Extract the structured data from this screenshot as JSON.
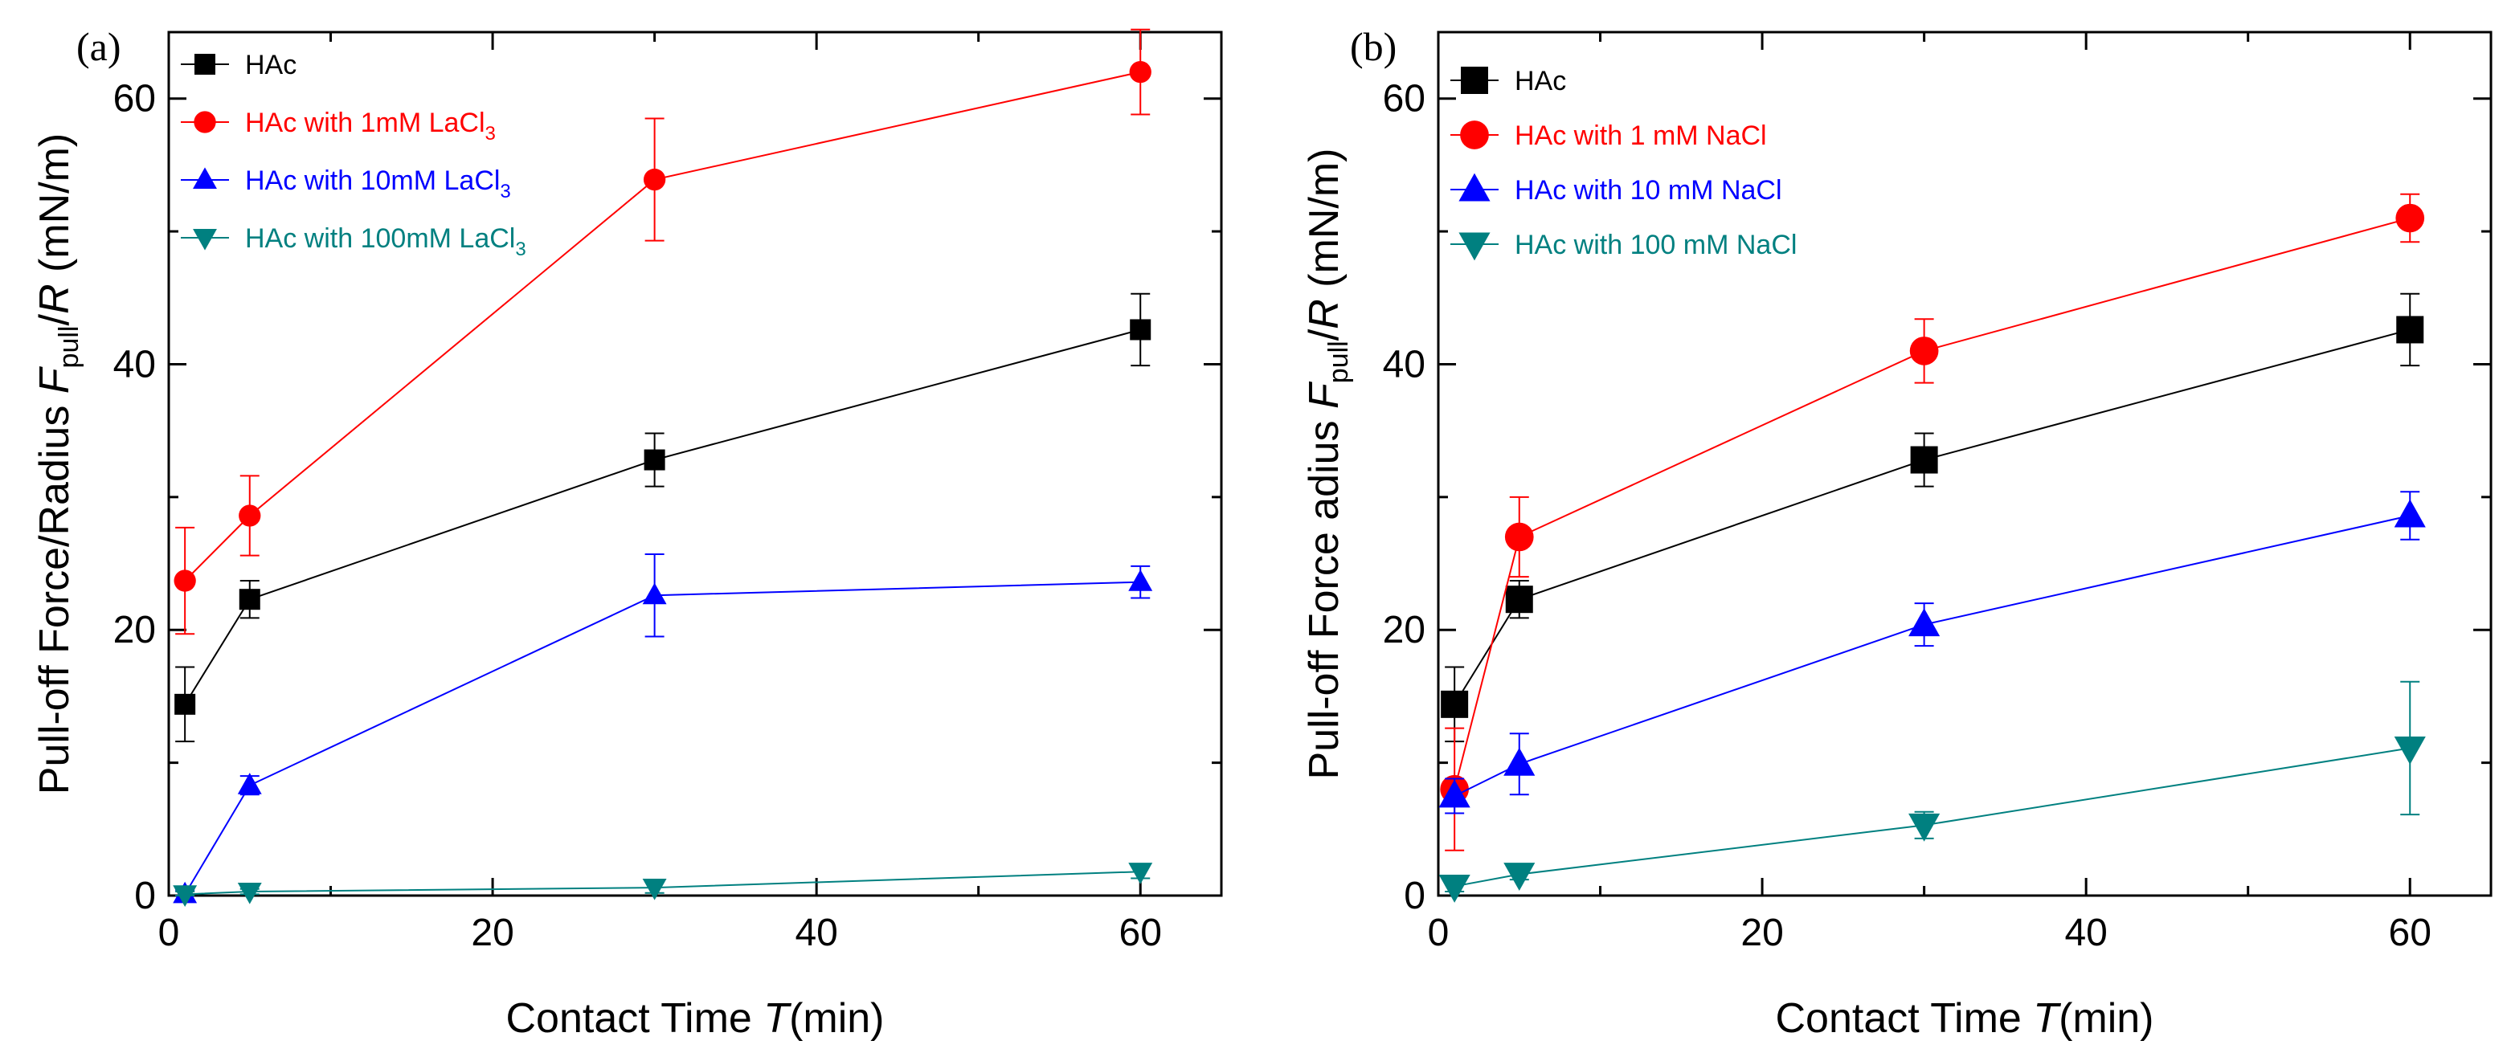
{
  "colors": {
    "HAc": "#000000",
    "red": "#ff0000",
    "blue": "#0000ff",
    "teal": "#008080"
  },
  "chart_data": [
    {
      "type": "line",
      "panel": "(a)",
      "xlabel_prefix": "Contact Time ",
      "xlabel_var": "T",
      "xlabel_unit": "(min)",
      "ylabel_prefix": "Pull-off Force/Radius  ",
      "ylabel_F": "F",
      "ylabel_sub": "pull",
      "ylabel_slash": "/",
      "ylabel_R": "R",
      "ylabel_unit": " (mN/m)",
      "xlim": [
        0,
        65
      ],
      "ylim": [
        0,
        65
      ],
      "xticks": [
        0,
        20,
        40,
        60
      ],
      "yticks": [
        0,
        20,
        40,
        60
      ],
      "x": [
        1,
        5,
        30,
        60
      ],
      "series": [
        {
          "name": "HAc",
          "sub": "",
          "marker": "square",
          "color": "#000000",
          "values": [
            14.4,
            22.3,
            32.8,
            42.6
          ],
          "errors": [
            2.8,
            1.4,
            2.0,
            2.7
          ]
        },
        {
          "name": "HAc with 1mM LaCl",
          "sub": "3",
          "marker": "circle",
          "color": "#ff0000",
          "values": [
            23.7,
            28.6,
            53.9,
            62.0
          ],
          "errors": [
            4.0,
            3.0,
            4.6,
            3.2
          ]
        },
        {
          "name": "HAc with 10mM LaCl",
          "sub": "3",
          "marker": "triangle-up",
          "color": "#0000ff",
          "values": [
            0.1,
            8.3,
            22.6,
            23.6
          ],
          "errors": [
            0.3,
            0.7,
            3.1,
            1.2
          ]
        },
        {
          "name": "HAc with 100mM LaCl",
          "sub": "3",
          "marker": "triangle-down",
          "color": "#008080",
          "values": [
            0.1,
            0.3,
            0.6,
            1.8
          ],
          "errors": [
            0.2,
            0.2,
            0.4,
            0.5
          ]
        }
      ]
    },
    {
      "type": "line",
      "panel": "(b)",
      "xlabel_prefix": "Contact Time ",
      "xlabel_var": "T",
      "xlabel_unit": "(min)",
      "ylabel_prefix": "Pull-off Force   adius  ",
      "ylabel_F": "F",
      "ylabel_sub": "pull",
      "ylabel_slash": "/",
      "ylabel_R": "R",
      "ylabel_unit": " (mN/m)",
      "xlim": [
        0,
        65
      ],
      "ylim": [
        0,
        65
      ],
      "xticks": [
        0,
        20,
        40,
        60
      ],
      "yticks": [
        0,
        20,
        40,
        60
      ],
      "x": [
        1,
        5,
        30,
        60
      ],
      "series": [
        {
          "name": "HAc",
          "sub": "",
          "marker": "square",
          "color": "#000000",
          "values": [
            14.4,
            22.3,
            32.8,
            42.6
          ],
          "errors": [
            2.8,
            1.4,
            2.0,
            2.7
          ]
        },
        {
          "name": "HAc with 1 mM NaCl",
          "sub": "",
          "marker": "circle",
          "color": "#ff0000",
          "values": [
            8.0,
            27.0,
            41.0,
            51.0
          ],
          "errors": [
            4.6,
            3.0,
            2.4,
            1.8
          ]
        },
        {
          "name": "HAc with 10 mM NaCl",
          "sub": "",
          "marker": "triangle-up",
          "color": "#0000ff",
          "values": [
            7.5,
            9.9,
            20.4,
            28.6
          ],
          "errors": [
            1.3,
            2.3,
            1.6,
            1.8
          ]
        },
        {
          "name": "HAc with 100 mM NaCl",
          "sub": "",
          "marker": "triangle-down",
          "color": "#008080",
          "values": [
            0.7,
            1.6,
            5.3,
            11.1
          ],
          "errors": [
            0.4,
            0.4,
            1.0,
            5.0
          ]
        }
      ]
    }
  ]
}
